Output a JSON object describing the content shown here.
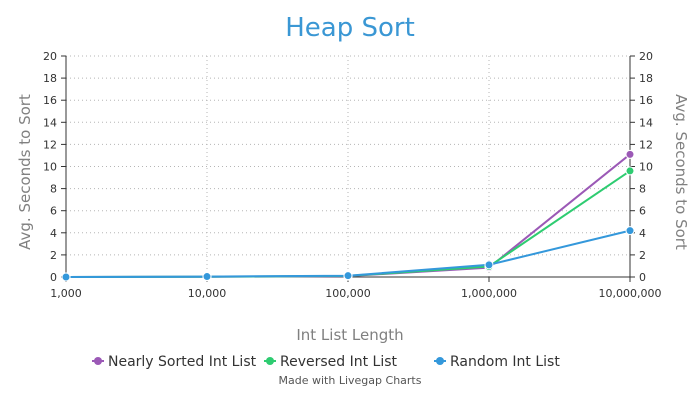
{
  "colors": {
    "title": "#3a97d4",
    "grid": "#b5b5b5",
    "axis": "#333333"
  },
  "footer": {
    "credit": "Made with Livegap Charts"
  },
  "chart_data": {
    "type": "line",
    "title": "Heap Sort",
    "xlabel": "Int List Length",
    "ylabel": "Avg. Seconds to Sort",
    "y2label": "Avg. Seconds to Sort",
    "x_scale": "categorical",
    "categories": [
      "1,000",
      "10,000",
      "100,000",
      "1,000,000",
      "10,000,000"
    ],
    "ylim": [
      0,
      20
    ],
    "yticks": [
      0,
      2,
      4,
      6,
      8,
      10,
      12,
      14,
      16,
      18,
      20
    ],
    "grid": true,
    "legend_position": "bottom",
    "series": [
      {
        "name": "Nearly Sorted Int List",
        "color": "#9b59b6",
        "values": [
          0.0,
          0.02,
          0.08,
          0.85,
          11.1
        ]
      },
      {
        "name": "Reversed Int List",
        "color": "#2ecc71",
        "values": [
          0.0,
          0.02,
          0.1,
          0.95,
          9.6
        ]
      },
      {
        "name": "Random Int List",
        "color": "#3498db",
        "values": [
          0.0,
          0.04,
          0.12,
          1.1,
          4.2
        ]
      }
    ]
  }
}
